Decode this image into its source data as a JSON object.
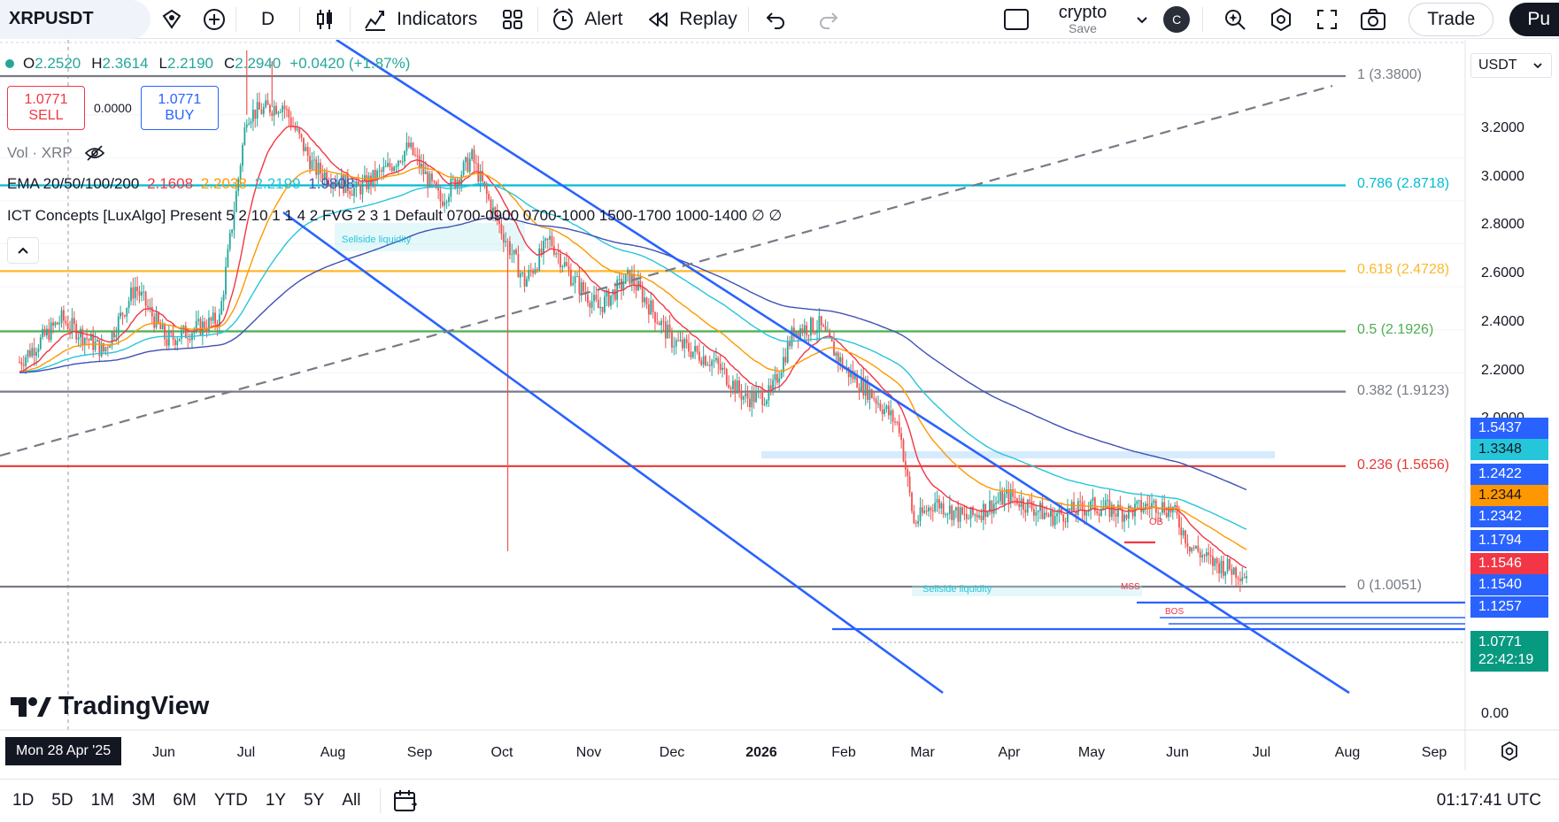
{
  "toolbar": {
    "symbol": "XRPUSDT",
    "interval": "D",
    "indicators_label": "Indicators",
    "alert_label": "Alert",
    "replay_label": "Replay",
    "layout_name": "crypto",
    "layout_save": "Save",
    "avatar_letter": "C",
    "trade_label": "Trade",
    "publish_label": "Pu"
  },
  "legend": {
    "open_label": "O",
    "open": "2.2520",
    "high_label": "H",
    "high": "2.3614",
    "low_label": "L",
    "low": "2.2190",
    "close_label": "C",
    "close": "2.2940",
    "change": "+0.0420 (+1.87%)",
    "vol": "Vol · XRP",
    "ema_label": "EMA 20/50/100/200",
    "ema20": "2.1608",
    "ema50": "2.2038",
    "ema100": "2.2199",
    "ema200": "1.9808",
    "ict": "ICT Concepts [LuxAlgo] Present 5 2 10 1 1 4 2 FVG 2 3 1 Default 0700-0900 0700-1000 1500-1700 1000-1400 ∅ ∅"
  },
  "trade_panel": {
    "sell_price": "1.0771",
    "sell_label": "SELL",
    "spread": "0.0000",
    "buy_price": "1.0771",
    "buy_label": "BUY"
  },
  "annotations": {
    "sellside_1": "Sellside liquidity",
    "sellside_2": "Sellside liquidity",
    "ob": "OB",
    "mss": "MSS",
    "bos": "BOS"
  },
  "fib_levels": [
    {
      "label": "1 (3.3800)",
      "price": 3.38,
      "color": "#787b86"
    },
    {
      "label": "0.786 (2.8718)",
      "price": 2.8718,
      "color": "#00bcd4"
    },
    {
      "label": "0.618 (2.4728)",
      "price": 2.4728,
      "color": "#ffb72b"
    },
    {
      "label": "0.5 (2.1926)",
      "price": 2.1926,
      "color": "#4caf50"
    },
    {
      "label": "0.382 (1.9123)",
      "price": 1.9123,
      "color": "#787b86"
    },
    {
      "label": "0.236 (1.5656)",
      "price": 1.5656,
      "color": "#e53935"
    },
    {
      "label": "0 (1.0051)",
      "price": 1.0051,
      "color": "#787b86"
    }
  ],
  "price_axis": {
    "currency": "USDT",
    "ticks": [
      "3.2000",
      "3.0000",
      "2.8000",
      "2.6000",
      "2.4000",
      "2.2000",
      "2.0000",
      "0.00"
    ],
    "labels": [
      {
        "text": "1.5437",
        "bg": "#2962ff"
      },
      {
        "text": "1.3348",
        "bg": "#26c6da"
      },
      {
        "text": "1.2422",
        "bg": "#2962ff"
      },
      {
        "text": "1.2344",
        "bg": "#ff9800"
      },
      {
        "text": "1.2342",
        "bg": "#2962ff"
      },
      {
        "text": "1.1794",
        "bg": "#2962ff"
      },
      {
        "text": "1.1546",
        "bg": "#f23645"
      },
      {
        "text": "1.1540",
        "bg": "#2962ff"
      },
      {
        "text": "1.1257",
        "bg": "#2962ff"
      }
    ],
    "current_price": "1.0771",
    "countdown": "22:42:19"
  },
  "time_axis": {
    "cursor_date": "Mon 28 Apr '25",
    "ticks": [
      {
        "label": "Jun",
        "bold": false
      },
      {
        "label": "Jul",
        "bold": false
      },
      {
        "label": "Aug",
        "bold": false
      },
      {
        "label": "Sep",
        "bold": false
      },
      {
        "label": "Oct",
        "bold": false
      },
      {
        "label": "Nov",
        "bold": false
      },
      {
        "label": "Dec",
        "bold": false
      },
      {
        "label": "2026",
        "bold": true
      },
      {
        "label": "Feb",
        "bold": false
      },
      {
        "label": "Mar",
        "bold": false
      },
      {
        "label": "Apr",
        "bold": false
      },
      {
        "label": "May",
        "bold": false
      },
      {
        "label": "Jun",
        "bold": false
      },
      {
        "label": "Jul",
        "bold": false
      },
      {
        "label": "Aug",
        "bold": false
      },
      {
        "label": "Sep",
        "bold": false
      }
    ]
  },
  "bottom_bar": {
    "ranges": [
      "1D",
      "5D",
      "1M",
      "3M",
      "6M",
      "YTD",
      "1Y",
      "5Y",
      "All"
    ],
    "clock": "01:17:41 UTC"
  },
  "brand": "TradingView",
  "colors": {
    "up": "#26a69a",
    "down": "#ef5350",
    "ema20": "#f23645",
    "ema50": "#ff9800",
    "ema100": "#26c6da",
    "ema200": "#3f51b5",
    "channel": "#2962ff"
  }
}
